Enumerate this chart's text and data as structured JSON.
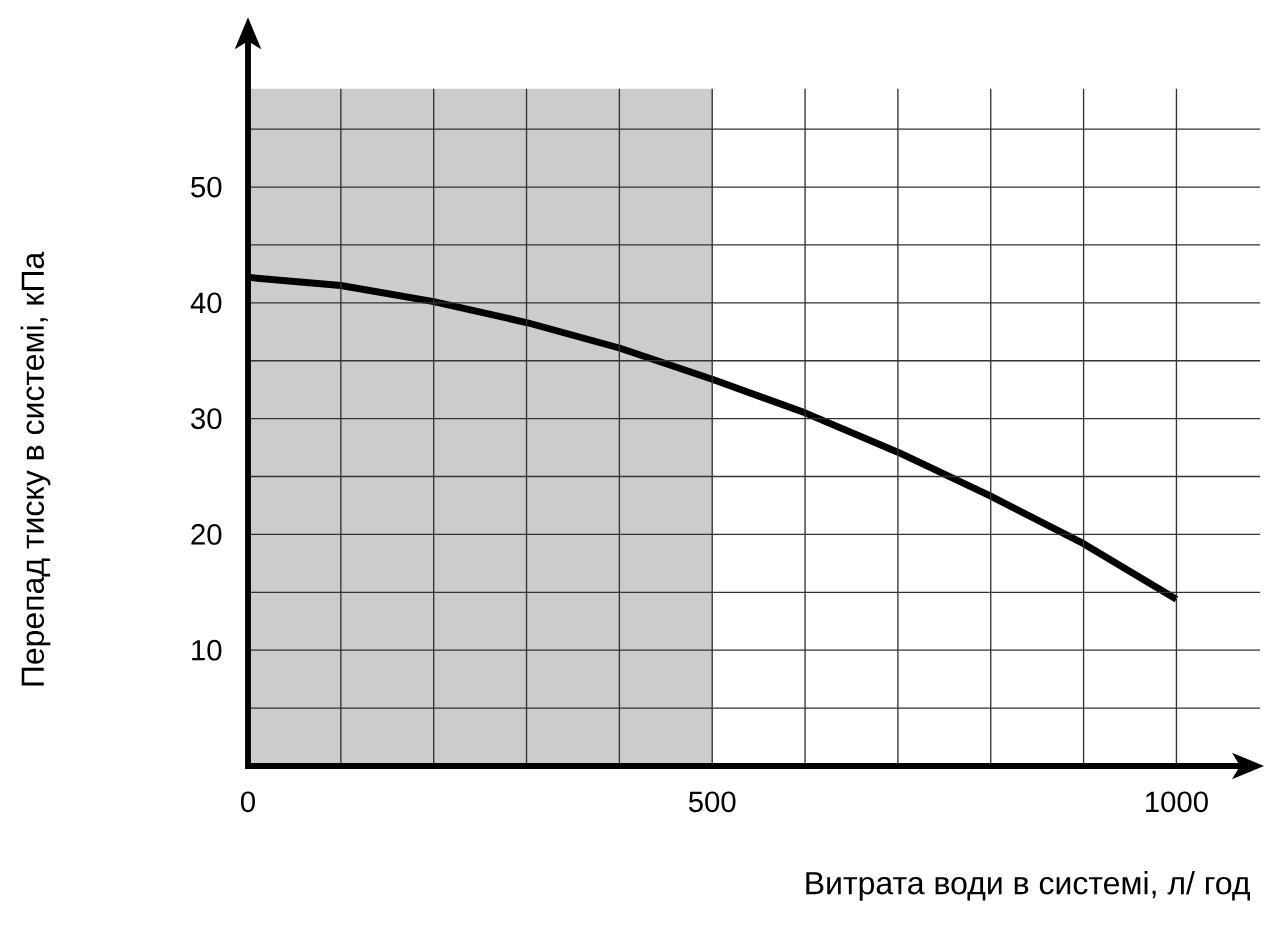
{
  "chart_data": {
    "type": "line",
    "xlabel": "Витрата води в системі, л/ год",
    "ylabel": "Перепад тиску в системі, кПа",
    "x": [
      0,
      100,
      200,
      300,
      400,
      500,
      600,
      700,
      800,
      900,
      1000
    ],
    "series": [
      {
        "color": "#000000",
        "values": [
          42.2,
          41.5,
          40.1,
          38.3,
          36.1,
          33.4,
          30.5,
          27.1,
          23.3,
          19.2,
          14.4
        ]
      }
    ],
    "xlim": [
      0,
      1090
    ],
    "ylim": [
      0,
      58.5
    ],
    "xticks": [
      0,
      {
        "value": 100,
        "label": null
      },
      {
        "value": 200,
        "label": null
      },
      {
        "value": 300,
        "label": null
      },
      {
        "value": 400,
        "label": null
      },
      500,
      {
        "value": 600,
        "label": null
      },
      {
        "value": 700,
        "label": null
      },
      {
        "value": 800,
        "label": null
      },
      {
        "value": 900,
        "label": null
      },
      1000
    ],
    "yticks": [
      {
        "value": 5,
        "label": null
      },
      10,
      {
        "value": 15,
        "label": null
      },
      20,
      {
        "value": 25,
        "label": null
      },
      30,
      {
        "value": 35,
        "label": null
      },
      40,
      {
        "value": 45,
        "label": null
      },
      50,
      {
        "value": 55,
        "label": null
      }
    ],
    "bands": [
      {
        "axis": "x",
        "from": 0,
        "to": 500,
        "color": "#cccccc"
      }
    ],
    "grid": true
  }
}
